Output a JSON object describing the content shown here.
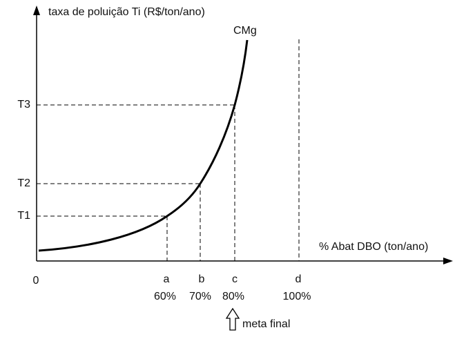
{
  "axes": {
    "y_label": "taxa de poluição Ti (R$/ton/ano)",
    "x_label": "% Abat DBO (ton/ano)",
    "origin": "0"
  },
  "curve_label": "CMg",
  "y_levels": [
    "T1",
    "T2",
    "T3"
  ],
  "x_points": [
    {
      "letter": "a",
      "percent": "60%"
    },
    {
      "letter": "b",
      "percent": "70%"
    },
    {
      "letter": "c",
      "percent": "80%"
    },
    {
      "letter": "d",
      "percent": "100%"
    }
  ],
  "annotation": "meta final"
}
